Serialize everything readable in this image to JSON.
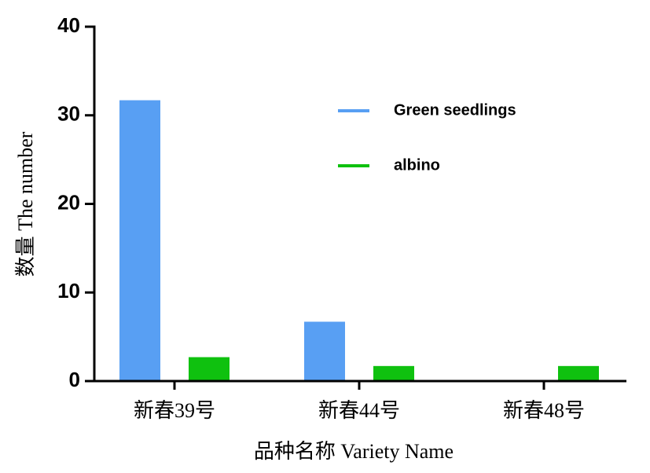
{
  "chart_data": {
    "type": "bar",
    "x_label": "品种名称 Variety Name",
    "y_label": "数量 The number",
    "categories": [
      "新春39号",
      "新春44号",
      "新春48号"
    ],
    "series": [
      {
        "name": "Green seedlings",
        "color": "#589ff3",
        "values": [
          31.7,
          6.7,
          0
        ]
      },
      {
        "name": "albino",
        "color": "#0fc10f",
        "values": [
          2.7,
          1.7,
          1.7
        ]
      }
    ],
    "ylim": [
      0,
      40
    ],
    "yticks": [
      0,
      10,
      20,
      30,
      40
    ]
  }
}
